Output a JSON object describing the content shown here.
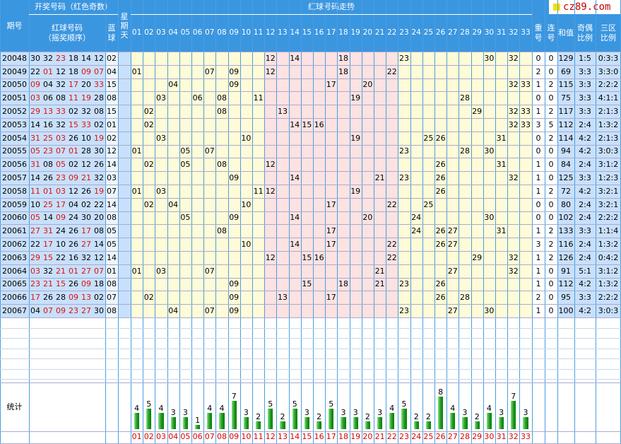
{
  "header": {
    "period": "期号",
    "winning": "开奖号码（红色奇数）",
    "red_balls": "红球号码",
    "order": "（摇奖顺序）",
    "blue": "蓝球",
    "weekday": "星期天",
    "trend": "红球号码走势",
    "repeat": "重号",
    "consecutive": "连号",
    "sum": "和值",
    "odd_even": "奇偶比例",
    "zone": "三区比例"
  },
  "watermark": "cz89.com",
  "colors": {
    "header": "#3b96e0",
    "odd": "#dd1111",
    "band_yellow": "#fffbd8",
    "band_pink": "#fde2e2",
    "band_blue": "#c8e0fb"
  },
  "stats_label": "统计",
  "chart_data": {
    "type": "bar",
    "title": "统计",
    "categories": [
      "01",
      "02",
      "03",
      "04",
      "05",
      "06",
      "07",
      "08",
      "09",
      "10",
      "11",
      "12",
      "13",
      "14",
      "15",
      "16",
      "17",
      "18",
      "19",
      "20",
      "21",
      "22",
      "23",
      "24",
      "25",
      "26",
      "27",
      "28",
      "29",
      "30",
      "31",
      "32",
      "33"
    ],
    "values": [
      4,
      5,
      4,
      3,
      3,
      1,
      4,
      4,
      7,
      3,
      2,
      5,
      2,
      5,
      3,
      2,
      5,
      3,
      3,
      2,
      3,
      4,
      5,
      2,
      2,
      8,
      4,
      3,
      2,
      4,
      3,
      7,
      3
    ]
  },
  "draws": [
    {
      "p": "20048",
      "balls": [
        "30",
        "32",
        "23",
        "18",
        "14",
        "12"
      ],
      "blue": "02",
      "rep": "0",
      "con": "0",
      "sum": "129",
      "oe": "1:5",
      "zone": "0:3:3"
    },
    {
      "p": "20049",
      "balls": [
        "22",
        "01",
        "12",
        "18",
        "09",
        "07"
      ],
      "blue": "04",
      "rep": "2",
      "con": "0",
      "sum": "69",
      "oe": "3:3",
      "zone": "3:3:0"
    },
    {
      "p": "20050",
      "balls": [
        "09",
        "04",
        "32",
        "17",
        "20",
        "33"
      ],
      "blue": "15",
      "rep": "1",
      "con": "2",
      "sum": "115",
      "oe": "3:3",
      "zone": "2:2:2"
    },
    {
      "p": "20051",
      "balls": [
        "03",
        "06",
        "08",
        "11",
        "19",
        "28"
      ],
      "blue": "08",
      "rep": "0",
      "con": "0",
      "sum": "75",
      "oe": "3:3",
      "zone": "4:1:1"
    },
    {
      "p": "20052",
      "balls": [
        "29",
        "13",
        "33",
        "02",
        "32",
        "08"
      ],
      "blue": "15",
      "rep": "1",
      "con": "2",
      "sum": "117",
      "oe": "3:3",
      "zone": "2:1:3"
    },
    {
      "p": "20053",
      "balls": [
        "14",
        "16",
        "32",
        "15",
        "33",
        "02"
      ],
      "blue": "01",
      "rep": "3",
      "con": "5",
      "sum": "112",
      "oe": "2:4",
      "zone": "1:3:2"
    },
    {
      "p": "20054",
      "balls": [
        "31",
        "25",
        "03",
        "26",
        "10",
        "19"
      ],
      "blue": "02",
      "rep": "0",
      "con": "2",
      "sum": "114",
      "oe": "4:2",
      "zone": "2:1:3"
    },
    {
      "p": "20055",
      "balls": [
        "05",
        "23",
        "07",
        "01",
        "28",
        "30"
      ],
      "blue": "12",
      "rep": "0",
      "con": "0",
      "sum": "94",
      "oe": "4:2",
      "zone": "3:0:3"
    },
    {
      "p": "20056",
      "balls": [
        "31",
        "08",
        "05",
        "02",
        "12",
        "26"
      ],
      "blue": "14",
      "rep": "1",
      "con": "0",
      "sum": "84",
      "oe": "2:4",
      "zone": "3:1:2"
    },
    {
      "p": "20057",
      "balls": [
        "14",
        "26",
        "23",
        "09",
        "21",
        "32"
      ],
      "blue": "03",
      "rep": "1",
      "con": "0",
      "sum": "125",
      "oe": "3:3",
      "zone": "1:2:3"
    },
    {
      "p": "20058",
      "balls": [
        "11",
        "01",
        "03",
        "12",
        "26",
        "19"
      ],
      "blue": "07",
      "rep": "1",
      "con": "2",
      "sum": "72",
      "oe": "4:2",
      "zone": "3:2:1"
    },
    {
      "p": "20059",
      "balls": [
        "10",
        "25",
        "17",
        "04",
        "02",
        "22"
      ],
      "blue": "14",
      "rep": "0",
      "con": "0",
      "sum": "80",
      "oe": "2:4",
      "zone": "3:2:1"
    },
    {
      "p": "20060",
      "balls": [
        "05",
        "14",
        "09",
        "24",
        "30",
        "20"
      ],
      "blue": "08",
      "rep": "0",
      "con": "0",
      "sum": "102",
      "oe": "2:4",
      "zone": "2:2:2"
    },
    {
      "p": "20061",
      "balls": [
        "27",
        "31",
        "24",
        "26",
        "17",
        "08"
      ],
      "blue": "05",
      "rep": "1",
      "con": "2",
      "sum": "133",
      "oe": "3:3",
      "zone": "1:1:4"
    },
    {
      "p": "20062",
      "balls": [
        "22",
        "17",
        "10",
        "26",
        "27",
        "14"
      ],
      "blue": "05",
      "rep": "3",
      "con": "2",
      "sum": "116",
      "oe": "2:4",
      "zone": "1:3:2"
    },
    {
      "p": "20063",
      "balls": [
        "29",
        "15",
        "22",
        "16",
        "32",
        "12"
      ],
      "blue": "14",
      "rep": "1",
      "con": "2",
      "sum": "126",
      "oe": "2:4",
      "zone": "0:4:2"
    },
    {
      "p": "20064",
      "balls": [
        "03",
        "32",
        "21",
        "01",
        "27",
        "07"
      ],
      "blue": "01",
      "rep": "1",
      "con": "0",
      "sum": "91",
      "oe": "5:1",
      "zone": "3:1:2"
    },
    {
      "p": "20065",
      "balls": [
        "23",
        "21",
        "15",
        "26",
        "09",
        "18"
      ],
      "blue": "08",
      "rep": "1",
      "con": "0",
      "sum": "112",
      "oe": "4:2",
      "zone": "1:3:2"
    },
    {
      "p": "20066",
      "balls": [
        "17",
        "26",
        "28",
        "09",
        "13",
        "02"
      ],
      "blue": "07",
      "rep": "2",
      "con": "0",
      "sum": "95",
      "oe": "3:3",
      "zone": "2:2:2"
    },
    {
      "p": "20067",
      "balls": [
        "04",
        "07",
        "09",
        "23",
        "27",
        "30"
      ],
      "blue": "08",
      "rep": "1",
      "con": "0",
      "sum": "100",
      "oe": "4:2",
      "zone": "3:0:3"
    }
  ]
}
